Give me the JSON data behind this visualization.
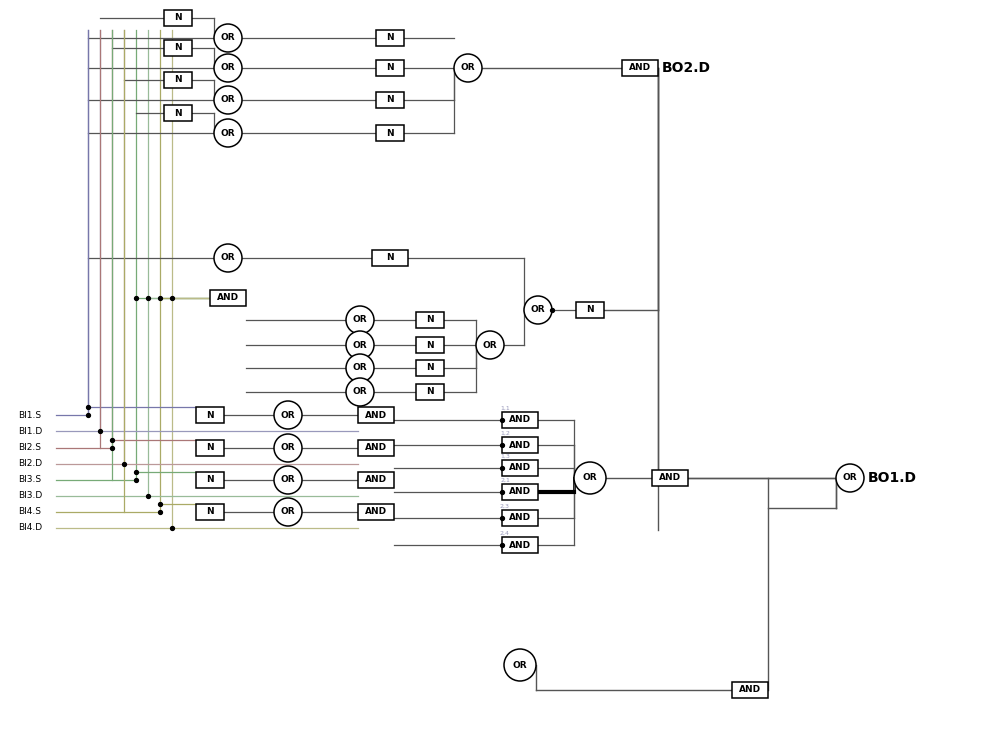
{
  "background": "#ffffff",
  "lc": "#555555",
  "lc_multi": [
    "#7777aa",
    "#9999bb",
    "#aa7777",
    "#bb9999",
    "#77aa77",
    "#99bb99",
    "#aaaa66",
    "#bbbb88"
  ],
  "bo2d_label": "BO2.D",
  "bo1d_label": "BO1.D",
  "input_labels": [
    "BI1.S",
    "BI1.D",
    "BI2.S",
    "BI2.D",
    "BI3.S",
    "BI3.D",
    "BI4.S",
    "BI4.D"
  ],
  "right_and_labels": [
    "1,1",
    "1,2",
    "1,3",
    "2,1",
    "2,3",
    "2,4"
  ],
  "fig_width": 10.0,
  "fig_height": 7.3
}
